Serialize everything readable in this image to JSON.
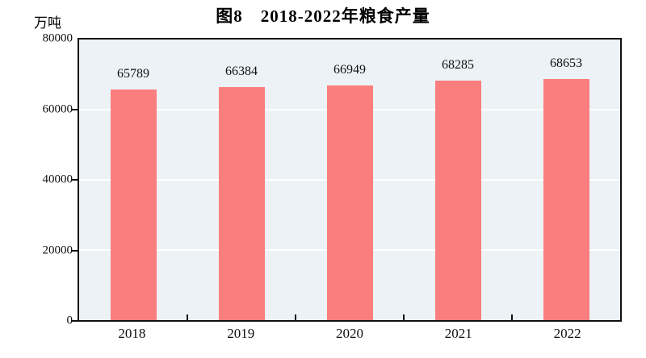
{
  "title": "图8　2018-2022年粮食产量",
  "unit_label": "万吨",
  "colors": {
    "bar": "#FB7E7E",
    "plot_bg": "#ECF2F5",
    "grid": "#FFFFFF",
    "axis": "#111111",
    "text": "#111111",
    "page_bg": "#FFFFFF"
  },
  "chart_data": {
    "type": "bar",
    "title": "图8　2018-2022年粮食产量",
    "categories": [
      "2018",
      "2019",
      "2020",
      "2021",
      "2022"
    ],
    "values": [
      65789,
      66384,
      66949,
      68285,
      68653
    ],
    "data_labels": [
      "65789",
      "66384",
      "66949",
      "68285",
      "68653"
    ],
    "xlabel": "",
    "ylabel": "万吨",
    "ylim": [
      0,
      80000
    ],
    "yticks": [
      0,
      20000,
      40000,
      60000,
      80000
    ],
    "ytick_labels": [
      "0",
      "20000",
      "40000",
      "60000",
      "80000"
    ],
    "grid": "horizontal white lines at 20000, 40000, 60000",
    "legend_position": "none",
    "series_count": 1
  }
}
